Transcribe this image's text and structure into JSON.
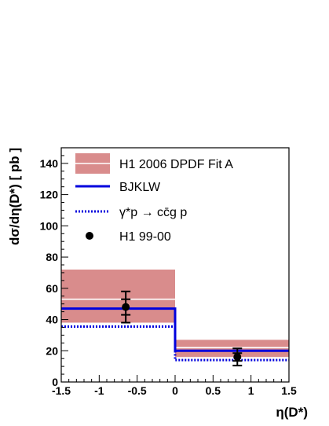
{
  "chart_data": {
    "type": "histogram",
    "xlabel": "η(D*)",
    "ylabel": "dσ/dη(D*) [ pb ]",
    "xlim": [
      -1.5,
      1.5
    ],
    "ylim": [
      0,
      150
    ],
    "x_ticks": [
      "-1.5",
      "-1",
      "-0.5",
      "0",
      "0.5",
      "1",
      "1.5"
    ],
    "y_ticks": [
      "0",
      "20",
      "40",
      "60",
      "80",
      "100",
      "120",
      "140"
    ],
    "bins": [
      [
        -1.5,
        0.0
      ],
      [
        0.0,
        1.5
      ]
    ],
    "series": [
      {
        "name": "H1 2006 DPDF Fit A",
        "kind": "band",
        "color": "#d98c8c",
        "bins": [
          {
            "low": 38,
            "high": 72,
            "central": 53
          },
          {
            "low": 16,
            "high": 27,
            "central": 22
          }
        ]
      },
      {
        "name": "BJKLW",
        "kind": "step-solid",
        "color": "#0000dd",
        "values": [
          47,
          20
        ]
      },
      {
        "name": "γ*p → cc̄g p",
        "kind": "step-dotted",
        "color": "#0000dd",
        "values": [
          35.5,
          14
        ]
      },
      {
        "name": "H1 99-00",
        "kind": "points",
        "color": "#000000",
        "points": [
          {
            "x": -0.65,
            "y": 48,
            "stat": 5,
            "tot": 10
          },
          {
            "x": 0.82,
            "y": 16,
            "stat": 2.5,
            "tot": 5.5
          }
        ]
      }
    ],
    "legend_position": "top-right"
  }
}
